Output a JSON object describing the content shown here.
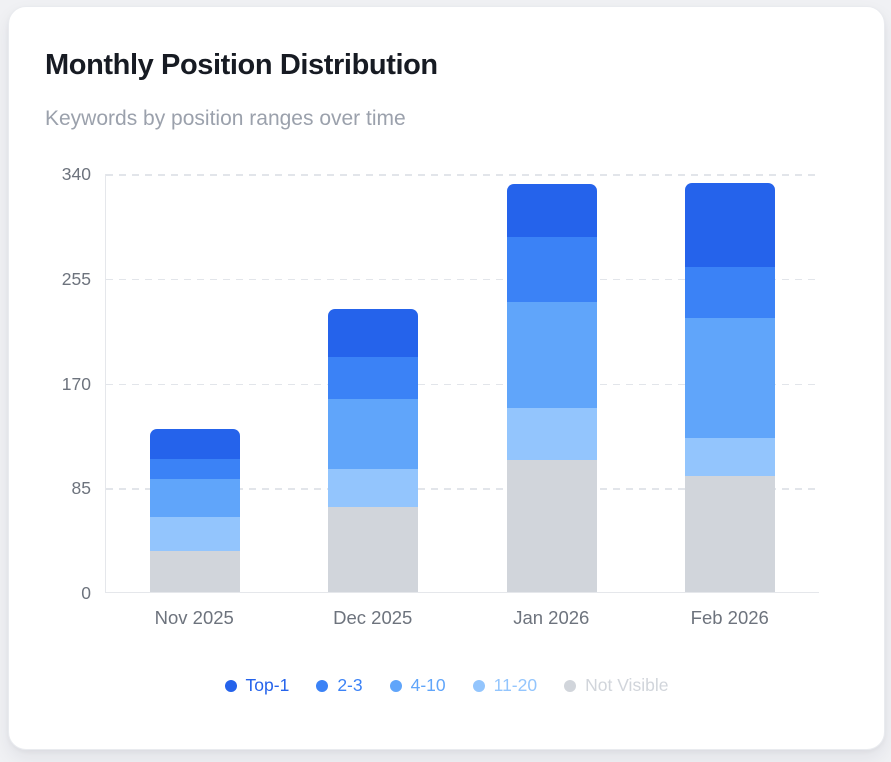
{
  "card": {
    "title": "Monthly Position Distribution",
    "subtitle": "Keywords by position ranges over time"
  },
  "chart_data": {
    "type": "bar",
    "stacked": true,
    "title": "Monthly Position Distribution",
    "subtitle": "Keywords by position ranges over time",
    "categories": [
      "Nov 2025",
      "Dec 2025",
      "Jan 2026",
      "Feb 2026"
    ],
    "series": [
      {
        "name": "Top-1",
        "color": "#2563eb",
        "values": [
          24,
          39,
          43,
          68
        ]
      },
      {
        "name": "2-3",
        "color": "#3b82f6",
        "values": [
          16,
          34,
          53,
          42
        ]
      },
      {
        "name": "4-10",
        "color": "#60a5fa",
        "values": [
          31,
          57,
          86,
          97
        ]
      },
      {
        "name": "11-20",
        "color": "#93c5fd",
        "values": [
          28,
          31,
          42,
          31
        ]
      },
      {
        "name": "Not Visible",
        "color": "#d1d5db",
        "values": [
          33,
          69,
          107,
          94
        ]
      }
    ],
    "stack_totals": [
      132,
      230,
      331,
      332
    ],
    "y_ticks": [
      0,
      85,
      170,
      255,
      340
    ],
    "ylim": [
      0,
      340
    ],
    "xlabel": "",
    "ylabel": "",
    "grid": "horizontal-dashed",
    "legend_position": "bottom"
  }
}
